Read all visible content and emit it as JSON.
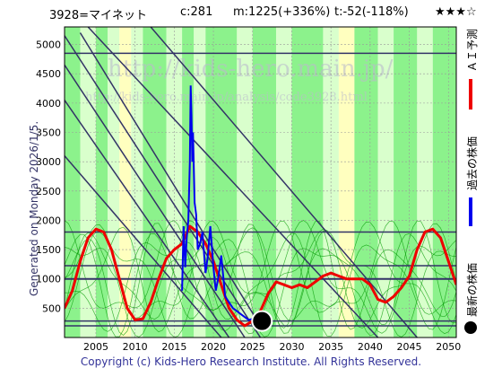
{
  "header": {
    "ticker": "3928=マイネット",
    "current": "c:281",
    "max_label": "m:1225(+336%)",
    "target_label": "t:-52(-118%)",
    "stars": "★★★☆"
  },
  "side_text": {
    "generated": "Generated on Monday 2026/1/5.",
    "legend_ai": "ＡＩ予測",
    "legend_past": "過去の株価",
    "legend_latest": "最新の株価"
  },
  "watermark": {
    "url": "http://kids-hero.main.jp/",
    "sub_url": "http://kids-hero.main.jp/analysis/code3928.html"
  },
  "copyright": "Copyright (c) Kids-Hero Research Institute. All Rights Reserved.",
  "colors": {
    "ai_prediction": "#ee0000",
    "past_price": "#0000ee",
    "latest_point": "#000000",
    "band_green": "#66ee66",
    "band_light_green": "#ccffbb",
    "band_yellow": "#ffffaa",
    "guide_line": "#333366",
    "thin_green": "#009900"
  },
  "chart_data": {
    "type": "line",
    "xlim": [
      2001,
      2051
    ],
    "ylim": [
      0,
      5300
    ],
    "x_ticks": [
      2005,
      2010,
      2015,
      2020,
      2025,
      2030,
      2035,
      2040,
      2045,
      2050
    ],
    "y_ticks": [
      500,
      1000,
      1500,
      2000,
      2500,
      3000,
      3500,
      4000,
      4500,
      5000
    ],
    "horizontal_levels": [
      4850,
      1800,
      1225,
      1000,
      281,
      200
    ],
    "diagonal_lines": [
      {
        "x": [
          2001,
          2026
        ],
        "y": [
          5150,
          0
        ]
      },
      {
        "x": [
          2003,
          2026
        ],
        "y": [
          5200,
          200
        ]
      },
      {
        "x": [
          2001,
          2024
        ],
        "y": [
          4650,
          0
        ]
      },
      {
        "x": [
          2001,
          2022
        ],
        "y": [
          4050,
          0
        ]
      },
      {
        "x": [
          2001,
          2021
        ],
        "y": [
          3100,
          0
        ]
      },
      {
        "x": [
          2004,
          2041
        ],
        "y": [
          5300,
          0
        ]
      },
      {
        "x": [
          2012,
          2046
        ],
        "y": [
          5300,
          0
        ]
      }
    ],
    "series": [
      {
        "name": "ＡＩ予測",
        "x": [
          2001,
          2002,
          2003,
          2004,
          2005,
          2006,
          2007,
          2008,
          2009,
          2010,
          2011,
          2012,
          2013,
          2014,
          2015,
          2016,
          2017,
          2018,
          2019,
          2020,
          2021,
          2022,
          2023,
          2024,
          2025,
          2026,
          2027,
          2028,
          2029,
          2030,
          2031,
          2032,
          2033,
          2034,
          2035,
          2036,
          2037,
          2038,
          2039,
          2040,
          2041,
          2042,
          2043,
          2044,
          2045,
          2046,
          2047,
          2048,
          2049,
          2050,
          2051
        ],
        "values": [
          500,
          800,
          1300,
          1700,
          1850,
          1800,
          1500,
          1000,
          500,
          300,
          320,
          600,
          1000,
          1350,
          1500,
          1600,
          1900,
          1800,
          1600,
          1300,
          900,
          500,
          300,
          200,
          280,
          450,
          750,
          950,
          900,
          850,
          900,
          850,
          950,
          1050,
          1100,
          1050,
          1000,
          1000,
          1000,
          900,
          650,
          600,
          700,
          850,
          1050,
          1500,
          1800,
          1850,
          1700,
          1300,
          900
        ]
      },
      {
        "name": "過去の株価",
        "x": [
          2016,
          2016.2,
          2016.4,
          2016.6,
          2016.8,
          2017,
          2017.1,
          2017.2,
          2017.3,
          2017.4,
          2017.6,
          2017.8,
          2018,
          2018.3,
          2018.6,
          2019,
          2019.3,
          2019.6,
          2020,
          2020.3,
          2020.6,
          2021,
          2021.5,
          2022,
          2022.5,
          2023,
          2023.5,
          2024,
          2024.5,
          2025,
          2025.3
        ],
        "values": [
          800,
          1900,
          1200,
          1700,
          2000,
          3000,
          4300,
          3800,
          3000,
          3500,
          2300,
          2100,
          1500,
          1600,
          1800,
          1100,
          1400,
          1900,
          1200,
          800,
          1000,
          1400,
          700,
          600,
          500,
          450,
          400,
          350,
          300,
          320,
          281
        ]
      }
    ],
    "latest_point": {
      "x": 2026.2,
      "y": 281
    }
  }
}
